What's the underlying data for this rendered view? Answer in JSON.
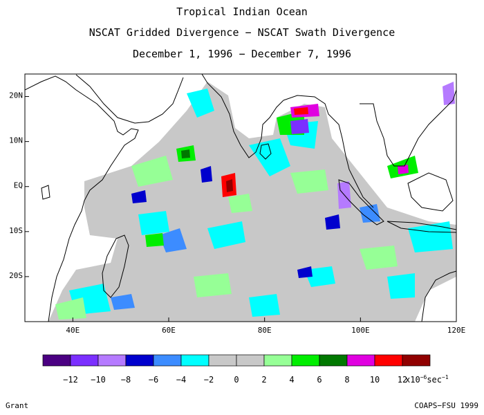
{
  "title": {
    "line1": "Tropical Indian Ocean",
    "line2": "NSCAT Gridded Divergence − NSCAT Swath Divergence",
    "line3": "December 1, 1996 − December 7, 1996"
  },
  "map": {
    "lon_range": [
      30,
      120
    ],
    "lat_range": [
      -30,
      25
    ],
    "lat_ticks": [
      {
        "value": 20,
        "label": "20N"
      },
      {
        "value": 10,
        "label": "10N"
      },
      {
        "value": 0,
        "label": "EQ"
      },
      {
        "value": -10,
        "label": "10S"
      },
      {
        "value": -20,
        "label": "20S"
      }
    ],
    "lon_ticks": [
      {
        "value": 40,
        "label": "40E"
      },
      {
        "value": 60,
        "label": "60E"
      },
      {
        "value": 80,
        "label": "80E"
      },
      {
        "value": 100,
        "label": "100E"
      },
      {
        "value": 120,
        "label": "120E"
      }
    ]
  },
  "colorbar": {
    "colors": [
      "#4b0082",
      "#7b2fff",
      "#b57aff",
      "#0000cd",
      "#3c8cff",
      "#00ffff",
      "#c8c8c8",
      "#c8c8c8",
      "#96ff96",
      "#00ee00",
      "#007800",
      "#e000e0",
      "#ff0000",
      "#900000"
    ],
    "labels": [
      "−12",
      "−10",
      "−8",
      "−6",
      "−4",
      "−2",
      "0",
      "2",
      "4",
      "6",
      "8",
      "10",
      "12"
    ],
    "units": "x10",
    "units_exp": "−6",
    "units_suffix": "sec",
    "units_suffix_exp": "−1"
  },
  "credits": {
    "left": "Grant",
    "right": "COAPS−FSU 1999"
  }
}
